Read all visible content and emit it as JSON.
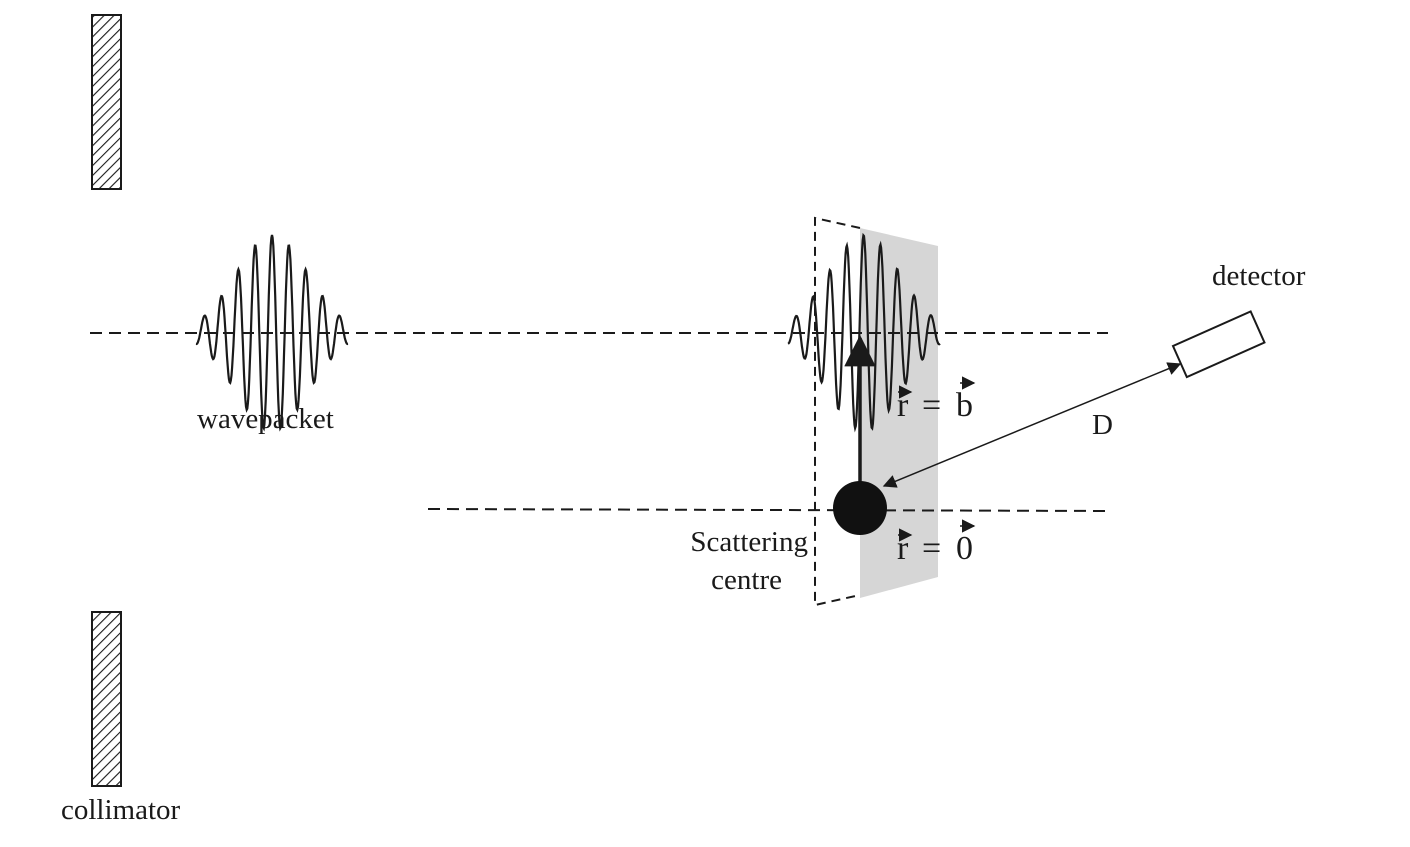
{
  "labels": {
    "wavepacket": "wavepacket",
    "collimator": "collimator",
    "detector": "detector",
    "distance": "D",
    "scattering_line1": "Scattering",
    "scattering_line2": "centre"
  },
  "equations": {
    "impact": {
      "lhs": "r",
      "op": "=",
      "rhs": "b"
    },
    "origin": {
      "lhs": "r",
      "op": "=",
      "rhs": "0"
    }
  },
  "colors": {
    "ink": "#1a1a1a",
    "shaded_plane": "#d6d6d6",
    "background": "#ffffff"
  }
}
